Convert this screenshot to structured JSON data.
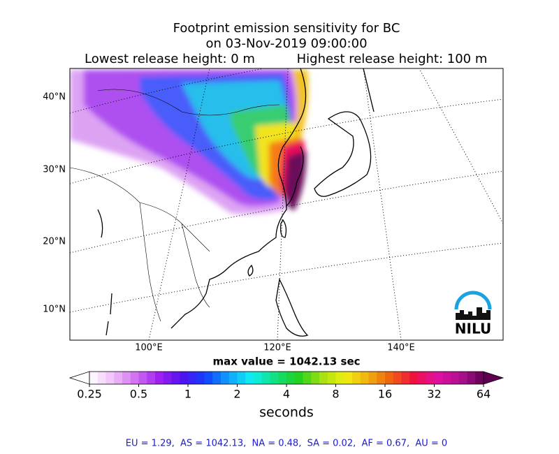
{
  "header": {
    "title": "Footprint emission sensitivity for BC",
    "date": "on 03-Nov-2019 09:00:00",
    "lowest": "Lowest release height: 0 m",
    "highest": "Highest release height: 100 m"
  },
  "map": {
    "lat_labels": [
      "40°N",
      "30°N",
      "20°N",
      "10°N"
    ],
    "lon_labels": [
      "100°E",
      "120°E",
      "140°E"
    ],
    "logo": "NILU"
  },
  "max_value": "max value = 1042.13 sec",
  "colorbar": {
    "ticks": [
      0.25,
      0.5,
      1,
      2,
      4,
      8,
      16,
      32,
      64
    ],
    "label": "seconds"
  },
  "footer": "EU = 1.29,  AS = 1042.13,  NA = 0.48,  SA = 0.02,  AF = 0.67,  AU = 0"
}
